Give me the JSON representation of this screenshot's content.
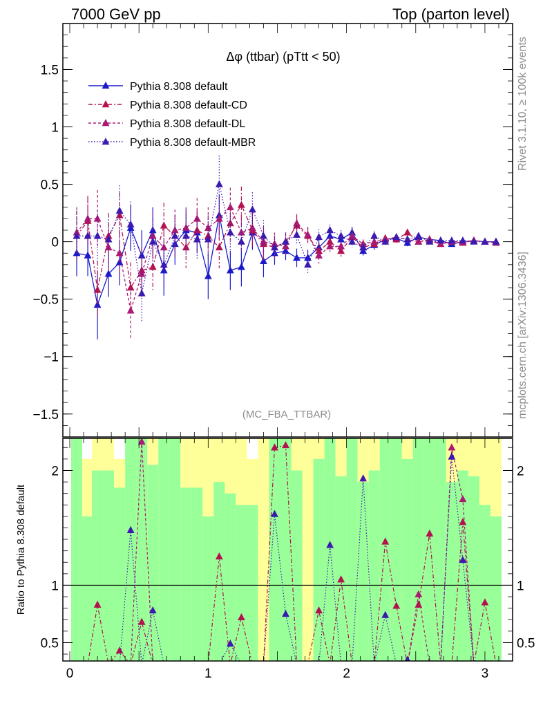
{
  "header": {
    "left": "7000 GeV pp",
    "right": "Top (parton level)"
  },
  "side_labels": {
    "rivet": "Rivet 3.1.10, ≥ 100k events",
    "mcplots": "mcplots.cern.ch [arXiv:1306.3436]"
  },
  "chart_data": [
    {
      "type": "line",
      "title": "Δφ (ttbar) (pTtt < 50)",
      "watermark": "(MC_FBA_TTBAR)",
      "xlim": [
        -0.05,
        3.2
      ],
      "ylim": [
        -1.7,
        1.9
      ],
      "y_ticks": [
        -1.5,
        -1,
        -0.5,
        0,
        0.5,
        1,
        1.5
      ],
      "y_tick_labels": [
        "−1.5",
        "−1",
        "−0.5",
        "0",
        "0.5",
        "1",
        "1.5"
      ],
      "legend_position": "top-left",
      "x": [
        0.05,
        0.13,
        0.2,
        0.28,
        0.36,
        0.44,
        0.52,
        0.6,
        0.68,
        0.76,
        0.84,
        0.92,
        1.0,
        1.08,
        1.16,
        1.24,
        1.32,
        1.4,
        1.48,
        1.56,
        1.64,
        1.72,
        1.8,
        1.88,
        1.96,
        2.04,
        2.12,
        2.2,
        2.28,
        2.36,
        2.44,
        2.52,
        2.6,
        2.68,
        2.76,
        2.84,
        2.92,
        3.0,
        3.08
      ],
      "series": [
        {
          "name": "Pythia 8.308 default",
          "color": "#1a1acc",
          "dash": "solid",
          "values": [
            -0.1,
            -0.12,
            -0.55,
            -0.28,
            -0.18,
            0.12,
            -0.12,
            0.1,
            -0.25,
            -0.02,
            0.1,
            0.08,
            -0.3,
            0.23,
            -0.25,
            -0.22,
            0.08,
            -0.17,
            -0.1,
            -0.08,
            -0.14,
            -0.14,
            -0.05,
            0.05,
            0.02,
            0.08,
            -0.08,
            -0.03,
            0.02,
            0.03,
            -0.01,
            0.04,
            0.02,
            0.01,
            -0.02,
            0.0,
            0.01,
            0.0,
            0.0
          ],
          "errors": [
            0.2,
            0.18,
            0.3,
            0.2,
            0.2,
            0.2,
            0.22,
            0.2,
            0.22,
            0.18,
            0.18,
            0.18,
            0.2,
            0.18,
            0.17,
            0.17,
            0.15,
            0.14,
            0.1,
            0.08,
            0.08,
            0.07,
            0.07,
            0.05,
            0.05,
            0.05,
            0.04,
            0.04,
            0.03,
            0.03,
            0.03,
            0.02,
            0.02,
            0.02,
            0.02,
            0.01,
            0.01,
            0.01,
            0.01
          ]
        },
        {
          "name": "Pythia 8.308 default-CD",
          "color": "#b3124f",
          "dash": "6,3,2,3",
          "values": [
            0.05,
            0.18,
            -0.42,
            0.05,
            0.23,
            -0.4,
            -0.25,
            -0.22,
            0.14,
            0.05,
            -0.05,
            0.1,
            0.05,
            -0.05,
            0.16,
            0.32,
            0.1,
            -0.02,
            -0.05,
            0.0,
            0.14,
            0.05,
            -0.08,
            0.0,
            -0.08,
            0.04,
            -0.05,
            -0.02,
            0.03,
            0.02,
            0.08,
            0.0,
            0.02,
            -0.02,
            0.0,
            0.0,
            0.01,
            0.0,
            0.0
          ],
          "errors": [
            0.22,
            0.2,
            0.25,
            0.2,
            0.2,
            0.22,
            0.2,
            0.2,
            0.2,
            0.18,
            0.18,
            0.18,
            0.18,
            0.18,
            0.17,
            0.16,
            0.15,
            0.14,
            0.1,
            0.08,
            0.08,
            0.07,
            0.07,
            0.05,
            0.05,
            0.05,
            0.04,
            0.04,
            0.03,
            0.03,
            0.03,
            0.02,
            0.02,
            0.02,
            0.02,
            0.01,
            0.01,
            0.01,
            0.01
          ]
        },
        {
          "name": "Pythia 8.308 default-DL",
          "color": "#aa1a72",
          "dash": "4,3",
          "values": [
            0.08,
            0.2,
            0.2,
            -0.05,
            -0.1,
            -0.6,
            -0.28,
            0.05,
            -0.05,
            0.1,
            0.12,
            0.2,
            0.12,
            0.2,
            0.3,
            0.08,
            0.12,
            0.0,
            -0.02,
            -0.04,
            0.16,
            0.06,
            -0.12,
            -0.04,
            -0.04,
            0.05,
            -0.02,
            0.0,
            0.02,
            0.04,
            0.02,
            0.0,
            0.01,
            -0.02,
            0.0,
            -0.01,
            0.01,
            0.0,
            -0.01
          ],
          "errors": [
            0.22,
            0.2,
            0.25,
            0.2,
            0.2,
            0.25,
            0.2,
            0.2,
            0.2,
            0.18,
            0.18,
            0.18,
            0.18,
            0.18,
            0.17,
            0.16,
            0.15,
            0.14,
            0.1,
            0.08,
            0.08,
            0.07,
            0.07,
            0.05,
            0.05,
            0.05,
            0.04,
            0.04,
            0.03,
            0.03,
            0.03,
            0.02,
            0.02,
            0.02,
            0.02,
            0.01,
            0.01,
            0.01,
            0.01
          ]
        },
        {
          "name": "Pythia 8.308 default-MBR",
          "color": "#3b1ab0",
          "dash": "1.5,2.5",
          "values": [
            0.05,
            0.05,
            0.05,
            0.02,
            0.27,
            0.15,
            -0.45,
            0.0,
            -0.2,
            0.05,
            0.05,
            0.02,
            0.02,
            0.5,
            0.08,
            0.0,
            0.28,
            0.05,
            -0.05,
            0.0,
            0.06,
            -0.2,
            0.04,
            0.1,
            0.05,
            0.0,
            -0.05,
            0.05,
            0.0,
            0.04,
            0.02,
            0.05,
            0.0,
            0.01,
            0.01,
            0.01,
            0.0,
            0.0,
            0.0
          ],
          "errors": [
            0.22,
            0.2,
            0.22,
            0.2,
            0.22,
            0.2,
            0.25,
            0.2,
            0.2,
            0.18,
            0.18,
            0.18,
            0.18,
            0.25,
            0.17,
            0.16,
            0.15,
            0.14,
            0.1,
            0.08,
            0.08,
            0.08,
            0.07,
            0.05,
            0.05,
            0.05,
            0.04,
            0.04,
            0.03,
            0.03,
            0.03,
            0.02,
            0.02,
            0.02,
            0.02,
            0.01,
            0.01,
            0.01,
            0.01
          ]
        }
      ]
    },
    {
      "type": "line",
      "ylabel": "Ratio to Pythia 8.308 default",
      "ylim": [
        0.34,
        2.28
      ],
      "y_ticks": [
        0.5,
        1,
        2
      ],
      "y_tick_labels": [
        "0.5",
        "1",
        "2"
      ],
      "x_ticks": [
        0,
        1,
        2,
        3
      ],
      "x_tick_labels": [
        "0",
        "1",
        "2",
        "3"
      ],
      "reference_line": 1,
      "band_yellow_upper": [
        2.28,
        2.1,
        2.28,
        2.28,
        2.1,
        2.05,
        2.28,
        2.28,
        2.1,
        2.28,
        2.28,
        2.28,
        2.28,
        2.28,
        2.28,
        2.28,
        2.1,
        2.28,
        2.28,
        2.28,
        2.28,
        2.28,
        2.28,
        2.28,
        2.28,
        2.28,
        2.28,
        2.28,
        2.28,
        2.28,
        2.28,
        2.28,
        2.28,
        2.28,
        2.28,
        2.28,
        2.28,
        2.28,
        2.28
      ],
      "band_green_upper": [
        2.28,
        1.6,
        2.0,
        2.0,
        1.85,
        2.28,
        2.28,
        2.05,
        2.28,
        2.28,
        1.85,
        1.85,
        1.6,
        1.9,
        1.8,
        1.7,
        1.7,
        0.34,
        2.28,
        2.28,
        2.0,
        0.34,
        2.1,
        2.28,
        1.95,
        2.28,
        1.9,
        2.0,
        2.28,
        2.28,
        2.1,
        2.28,
        2.28,
        2.28,
        1.9,
        2.0,
        1.95,
        1.7,
        1.6
      ],
      "series": [
        {
          "name": "Pythia 8.308 default-CD",
          "color": "#b3124f",
          "dash": "6,3,2,3",
          "values": [
            null,
            null,
            0.83,
            null,
            0.43,
            null,
            0.68,
            null,
            null,
            null,
            null,
            null,
            null,
            1.25,
            null,
            0.72,
            null,
            null,
            2.2,
            2.22,
            null,
            null,
            0.78,
            null,
            1.05,
            null,
            null,
            null,
            1.38,
            0.82,
            null,
            0.83,
            1.45,
            null,
            null,
            1.55,
            null,
            0.85,
            null
          ]
        },
        {
          "name": "Pythia 8.308 default-DL",
          "color": "#aa1a72",
          "dash": "4,3",
          "values": [
            null,
            null,
            null,
            null,
            null,
            null,
            2.25,
            null,
            null,
            null,
            null,
            null,
            null,
            null,
            null,
            null,
            null,
            null,
            null,
            null,
            null,
            null,
            null,
            null,
            null,
            null,
            null,
            null,
            null,
            null,
            null,
            0.92,
            null,
            null,
            2.2,
            1.75,
            null,
            null,
            null
          ]
        },
        {
          "name": "Pythia 8.308 default-MBR",
          "color": "#3b1ab0",
          "dash": "1.5,2.5",
          "values": [
            null,
            null,
            null,
            null,
            null,
            1.48,
            null,
            0.78,
            null,
            null,
            null,
            null,
            null,
            null,
            0.49,
            null,
            null,
            null,
            1.62,
            0.75,
            null,
            null,
            null,
            1.35,
            null,
            null,
            1.93,
            null,
            0.74,
            null,
            0.35,
            null,
            null,
            null,
            2.12,
            1.22,
            null,
            null,
            null
          ]
        }
      ]
    }
  ]
}
